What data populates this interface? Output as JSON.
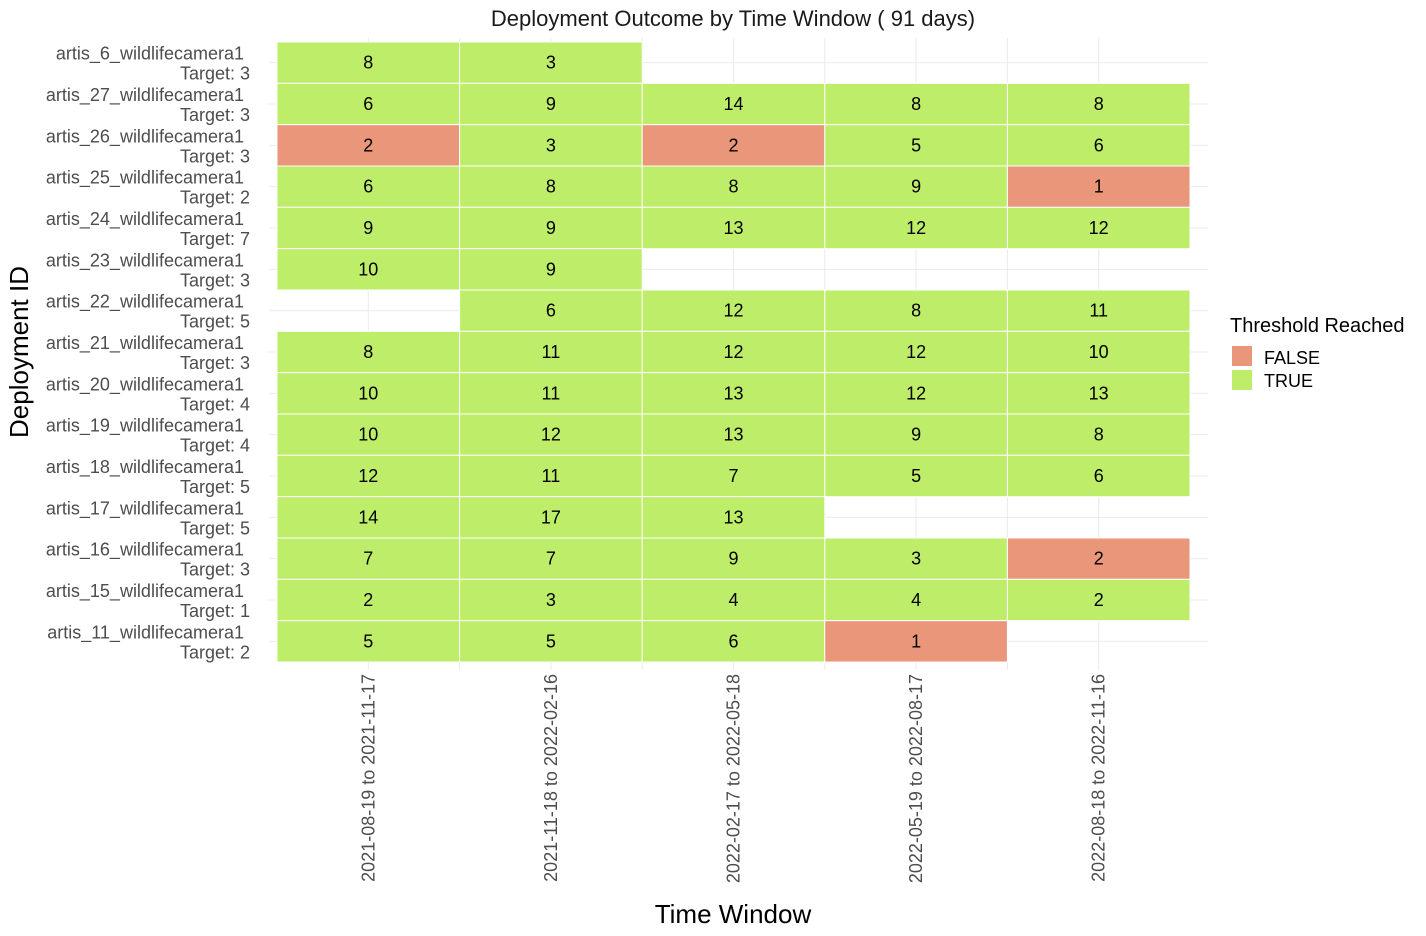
{
  "colors": {
    "false": "#E9967A",
    "true": "#BEED6A",
    "grid": "#EBEBEB",
    "background": "#FFFFFF"
  },
  "chart_data": {
    "type": "heatmap",
    "title": "Deployment Outcome by Time Window ( 91  days)",
    "xlabel": "Time Window",
    "ylabel": "Deployment ID",
    "x_categories": [
      "2021-08-19 to 2021-11-17",
      "2021-11-18 to 2022-02-16",
      "2022-02-17 to 2022-05-18",
      "2022-05-19 to 2022-08-17",
      "2022-08-18 to 2022-11-16"
    ],
    "y_categories": [
      {
        "id": "artis_6_wildlifecamera1",
        "target": "Target: 3"
      },
      {
        "id": "artis_27_wildlifecamera1",
        "target": "Target: 3"
      },
      {
        "id": "artis_26_wildlifecamera1",
        "target": "Target: 3"
      },
      {
        "id": "artis_25_wildlifecamera1",
        "target": "Target: 2"
      },
      {
        "id": "artis_24_wildlifecamera1",
        "target": "Target: 7"
      },
      {
        "id": "artis_23_wildlifecamera1",
        "target": "Target: 3"
      },
      {
        "id": "artis_22_wildlifecamera1",
        "target": "Target: 5"
      },
      {
        "id": "artis_21_wildlifecamera1",
        "target": "Target: 3"
      },
      {
        "id": "artis_20_wildlifecamera1",
        "target": "Target: 4"
      },
      {
        "id": "artis_19_wildlifecamera1",
        "target": "Target: 4"
      },
      {
        "id": "artis_18_wildlifecamera1",
        "target": "Target: 5"
      },
      {
        "id": "artis_17_wildlifecamera1",
        "target": "Target: 5"
      },
      {
        "id": "artis_16_wildlifecamera1",
        "target": "Target: 3"
      },
      {
        "id": "artis_15_wildlifecamera1",
        "target": "Target: 1"
      },
      {
        "id": "artis_11_wildlifecamera1",
        "target": "Target: 2"
      }
    ],
    "values": [
      [
        8,
        3,
        null,
        null,
        null
      ],
      [
        6,
        9,
        14,
        8,
        8
      ],
      [
        2,
        3,
        2,
        5,
        6
      ],
      [
        6,
        8,
        8,
        9,
        1
      ],
      [
        9,
        9,
        13,
        12,
        12
      ],
      [
        10,
        9,
        null,
        null,
        null
      ],
      [
        null,
        6,
        12,
        8,
        11
      ],
      [
        8,
        11,
        12,
        12,
        10
      ],
      [
        10,
        11,
        13,
        12,
        13
      ],
      [
        10,
        12,
        13,
        9,
        8
      ],
      [
        12,
        11,
        7,
        5,
        6
      ],
      [
        14,
        17,
        13,
        null,
        null
      ],
      [
        7,
        7,
        9,
        3,
        2
      ],
      [
        2,
        3,
        4,
        4,
        2
      ],
      [
        5,
        5,
        6,
        1,
        null
      ]
    ],
    "threshold_reached": [
      [
        true,
        true,
        null,
        null,
        null
      ],
      [
        true,
        true,
        true,
        true,
        true
      ],
      [
        false,
        true,
        false,
        true,
        true
      ],
      [
        true,
        true,
        true,
        true,
        false
      ],
      [
        true,
        true,
        true,
        true,
        true
      ],
      [
        true,
        true,
        null,
        null,
        null
      ],
      [
        null,
        true,
        true,
        true,
        true
      ],
      [
        true,
        true,
        true,
        true,
        true
      ],
      [
        true,
        true,
        true,
        true,
        true
      ],
      [
        true,
        true,
        true,
        true,
        true
      ],
      [
        true,
        true,
        true,
        true,
        true
      ],
      [
        true,
        true,
        true,
        null,
        null
      ],
      [
        true,
        true,
        true,
        true,
        false
      ],
      [
        true,
        true,
        true,
        true,
        true
      ],
      [
        true,
        true,
        true,
        false,
        null
      ]
    ],
    "legend": {
      "title": "Threshold Reached",
      "position": "right",
      "items": [
        {
          "label": "FALSE",
          "value": false
        },
        {
          "label": "TRUE",
          "value": true
        }
      ]
    },
    "grid": true
  }
}
